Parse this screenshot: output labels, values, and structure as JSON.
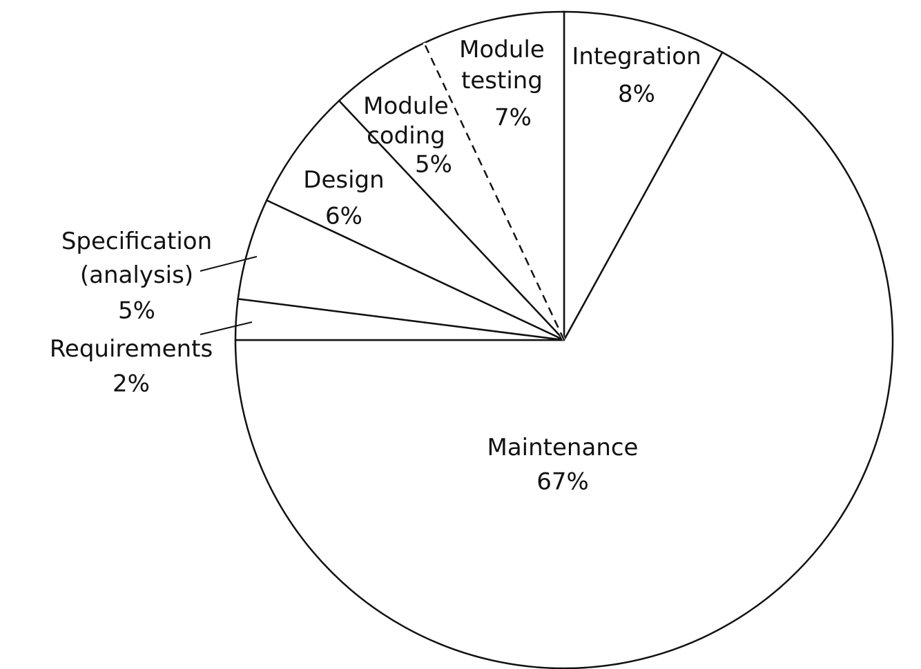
{
  "chart_data": {
    "type": "pie",
    "categories": [
      "Integration",
      "Maintenance",
      "Requirements",
      "Specification (analysis)",
      "Design",
      "Module coding",
      "Module testing"
    ],
    "values": [
      8,
      67,
      2,
      5,
      6,
      5,
      7
    ],
    "value_labels": [
      "8%",
      "67%",
      "2%",
      "5%",
      "6%",
      "5%",
      "7%"
    ],
    "color": "#ffffff"
  }
}
